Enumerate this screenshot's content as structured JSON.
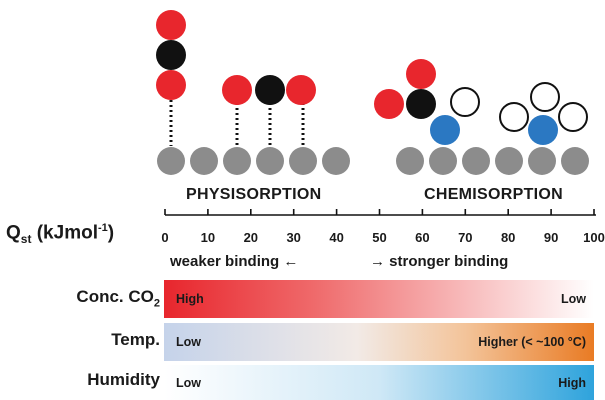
{
  "labels": {
    "physisorption": "PHYSISORPTION",
    "chemisorption": "CHEMISORPTION"
  },
  "axis": {
    "title_main": "Q",
    "title_sub": "st",
    "title_unit_pre": " (kJmol",
    "title_sup": "-1",
    "title_unit_post": ")",
    "ticks": [
      "0",
      "10",
      "20",
      "30",
      "40",
      "50",
      "60",
      "70",
      "80",
      "90",
      "100"
    ],
    "min": 0,
    "max": 100
  },
  "binding": {
    "weaker": "weaker binding ←",
    "stronger": "→ stronger binding"
  },
  "rows": [
    {
      "label": "Conc. CO",
      "label_sub": "2",
      "left": "High",
      "right": "Low"
    },
    {
      "label": "Temp.",
      "label_sub": "",
      "left": "Low",
      "right": "Higher (< ~100 °C)"
    },
    {
      "label": "Humidity",
      "label_sub": "",
      "left": "Low",
      "right": "High"
    }
  ],
  "colors": {
    "oxygen": "#e8262d",
    "carbon": "#111111",
    "substrate": "#8c8c8c",
    "binding_site": "#2b78c2",
    "conc_gradient": "#e8262d",
    "temp_gradient_start": "#c9d6ea",
    "temp_gradient_end": "#e97b24",
    "humidity_gradient": "#2ea3dc"
  }
}
